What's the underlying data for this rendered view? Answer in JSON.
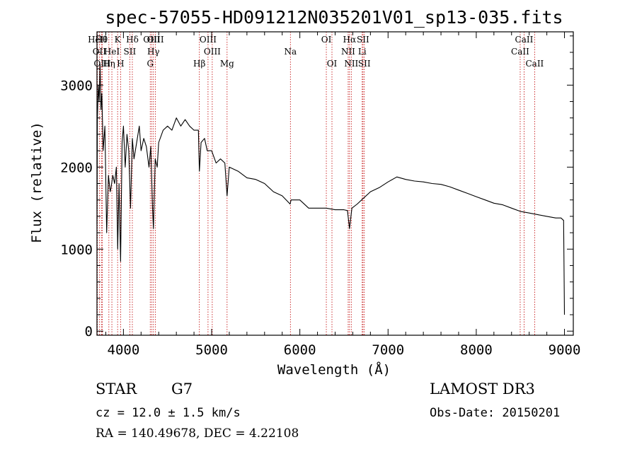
{
  "chart_data": {
    "type": "line",
    "title": "spec-57055-HD091212N035201V01_sp13-035.fits",
    "xlabel": "Wavelength (Å)",
    "ylabel": "Flux (relative)",
    "xlim": [
      3700,
      9100
    ],
    "ylim": [
      -50,
      3650
    ],
    "xticks": [
      4000,
      5000,
      6000,
      7000,
      8000,
      9000
    ],
    "yticks": [
      0,
      1000,
      2000,
      3000
    ],
    "series": [
      {
        "name": "spectrum",
        "x": [
          3700,
          3705,
          3715,
          3725,
          3735,
          3745,
          3755,
          3770,
          3790,
          3810,
          3830,
          3850,
          3860,
          3880,
          3900,
          3920,
          3935,
          3950,
          3968,
          3985,
          4000,
          4020,
          4040,
          4060,
          4080,
          4101,
          4120,
          4150,
          4180,
          4200,
          4230,
          4260,
          4290,
          4310,
          4330,
          4340,
          4360,
          4383,
          4400,
          4450,
          4500,
          4550,
          4600,
          4650,
          4700,
          4750,
          4800,
          4850,
          4861,
          4880,
          4920,
          4950,
          5000,
          5050,
          5100,
          5150,
          5175,
          5200,
          5300,
          5400,
          5500,
          5600,
          5700,
          5800,
          5890,
          5900,
          6000,
          6100,
          6200,
          6300,
          6400,
          6500,
          6540,
          6563,
          6590,
          6650,
          6700,
          6800,
          6900,
          7000,
          7100,
          7200,
          7300,
          7400,
          7500,
          7600,
          7700,
          7800,
          7900,
          8000,
          8100,
          8200,
          8300,
          8400,
          8500,
          8600,
          8700,
          8800,
          8900,
          8960,
          8990,
          9000
        ],
        "y": [
          1300,
          2600,
          3000,
          2800,
          3250,
          2700,
          2900,
          2200,
          2500,
          1200,
          1900,
          1700,
          1750,
          1900,
          1800,
          2000,
          1000,
          1800,
          850,
          2300,
          2500,
          2000,
          2400,
          2200,
          1500,
          2350,
          2100,
          2300,
          2500,
          2200,
          2350,
          2250,
          2000,
          2250,
          1500,
          1250,
          2100,
          2000,
          2300,
          2450,
          2500,
          2450,
          2600,
          2500,
          2580,
          2500,
          2450,
          2450,
          1950,
          2300,
          2350,
          2200,
          2200,
          2050,
          2100,
          2050,
          1650,
          2000,
          1950,
          1870,
          1850,
          1800,
          1700,
          1650,
          1550,
          1600,
          1600,
          1500,
          1500,
          1500,
          1480,
          1480,
          1470,
          1250,
          1500,
          1550,
          1600,
          1700,
          1750,
          1820,
          1880,
          1850,
          1830,
          1820,
          1800,
          1790,
          1760,
          1720,
          1680,
          1640,
          1600,
          1560,
          1540,
          1500,
          1460,
          1440,
          1420,
          1400,
          1380,
          1380,
          1350,
          200
        ]
      }
    ],
    "annotations": [
      {
        "label": "HeII",
        "wavelength": 3705,
        "row": 1
      },
      {
        "label": "OII",
        "wavelength": 3727,
        "row": 2
      },
      {
        "label": "Hθ",
        "wavelength": 3750,
        "row": 1
      },
      {
        "label": "OIII",
        "wavelength": 3760,
        "row": 3
      },
      {
        "label": "Hη",
        "wavelength": 3835,
        "row": 3
      },
      {
        "label": "HeI",
        "wavelength": 3869,
        "row": 2
      },
      {
        "label": "K",
        "wavelength": 3934,
        "row": 1
      },
      {
        "label": "H",
        "wavelength": 3968,
        "row": 3
      },
      {
        "label": "SII",
        "wavelength": 4072,
        "row": 2
      },
      {
        "label": "Hδ",
        "wavelength": 4101,
        "row": 1
      },
      {
        "label": "G",
        "wavelength": 4304,
        "row": 3
      },
      {
        "label": "OIII",
        "wavelength": 4320,
        "row": 1
      },
      {
        "label": "Hγ",
        "wavelength": 4340,
        "row": 2
      },
      {
        "label": "OIII",
        "wavelength": 4363,
        "row": 1
      },
      {
        "label": "Hβ",
        "wavelength": 4861,
        "row": 3
      },
      {
        "label": "OIII",
        "wavelength": 4959,
        "row": 1
      },
      {
        "label": "OIII",
        "wavelength": 5007,
        "row": 2
      },
      {
        "label": "Mg",
        "wavelength": 5175,
        "row": 3
      },
      {
        "label": "Na",
        "wavelength": 5893,
        "row": 2
      },
      {
        "label": "OI",
        "wavelength": 6300,
        "row": 1
      },
      {
        "label": "OI",
        "wavelength": 6364,
        "row": 3
      },
      {
        "label": "NII",
        "wavelength": 6548,
        "row": 2
      },
      {
        "label": "Hα",
        "wavelength": 6563,
        "row": 1
      },
      {
        "label": "NII",
        "wavelength": 6583,
        "row": 3
      },
      {
        "label": "Li",
        "wavelength": 6707,
        "row": 2
      },
      {
        "label": "SII",
        "wavelength": 6716,
        "row": 1
      },
      {
        "label": "SII",
        "wavelength": 6731,
        "row": 3
      },
      {
        "label": "CaII",
        "wavelength": 8498,
        "row": 2
      },
      {
        "label": "CaII",
        "wavelength": 8542,
        "row": 1
      },
      {
        "label": "CaII",
        "wavelength": 8662,
        "row": 3
      }
    ],
    "colors": {
      "spectrum": "#000000",
      "line_markers": "#c00000",
      "axes": "#000000"
    }
  },
  "info": {
    "object_class": "STAR",
    "subclass": "G7",
    "survey": "LAMOST DR3",
    "cz": "cz = 12.0 ± 1.5 km/s",
    "obs_date": "Obs-Date: 20150201",
    "coords": "RA = 140.49678, DEC =   4.22108"
  }
}
